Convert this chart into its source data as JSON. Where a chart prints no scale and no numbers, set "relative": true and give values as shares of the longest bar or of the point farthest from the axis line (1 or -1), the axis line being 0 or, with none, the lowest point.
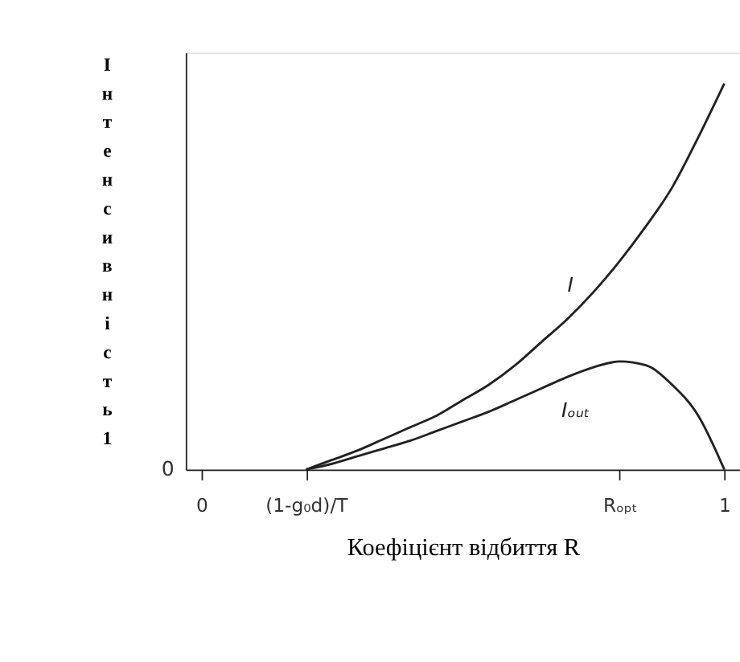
{
  "chart_data": {
    "type": "line",
    "relative": true,
    "xlabel": "Коефіцієнт відбиття R",
    "ylabel": "Інтенсивність1",
    "categories": [
      "0",
      null,
      null,
      null,
      "(1-g₀d)/T",
      null,
      null,
      null,
      null,
      null,
      null,
      null,
      null,
      null,
      null,
      null,
      "Rₒₚₜ",
      null,
      null,
      null,
      "1"
    ],
    "annotations": [
      "0"
    ],
    "grid": false,
    "legend": false,
    "marker": "none",
    "line_style": "solid",
    "series": [
      {
        "name": "I",
        "color": "#222222",
        "values": [
          null,
          null,
          null,
          null,
          0,
          0.025,
          0.05,
          0.08,
          0.11,
          0.14,
          0.18,
          0.22,
          0.27,
          0.33,
          0.39,
          0.46,
          0.54,
          0.63,
          0.73,
          0.86,
          1.0
        ]
      },
      {
        "name": "Iₒᵤₜ",
        "color": "#222222",
        "values": [
          null,
          null,
          null,
          null,
          0,
          0.015,
          0.035,
          0.055,
          0.075,
          0.1,
          0.125,
          0.15,
          0.18,
          0.21,
          0.24,
          0.265,
          0.28,
          0.27,
          0.22,
          0.14,
          0
        ]
      }
    ]
  }
}
